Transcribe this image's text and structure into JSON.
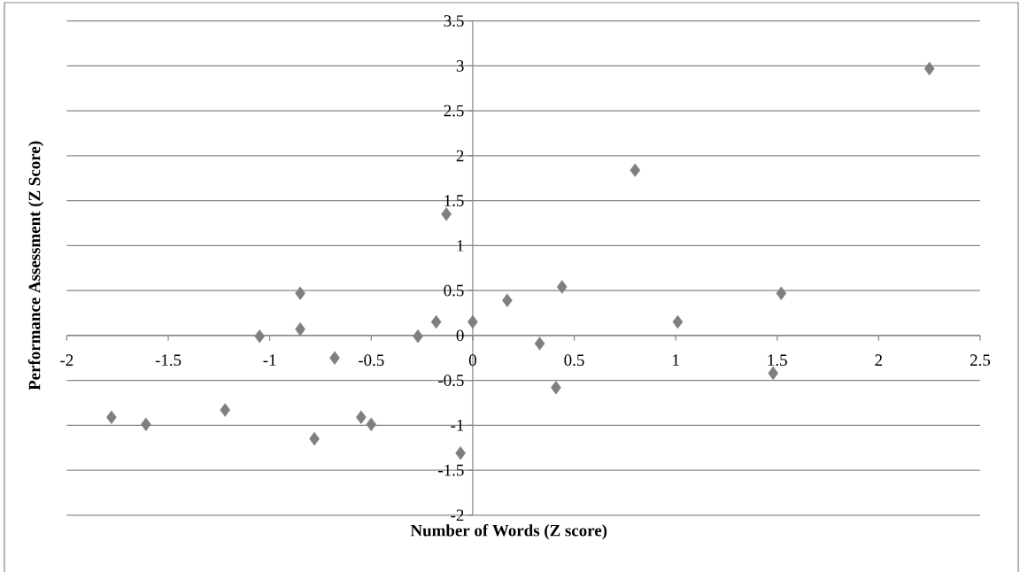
{
  "chart_data": {
    "type": "scatter",
    "xlabel": "Number of Words (Z score)",
    "ylabel": "Performance Assessment (Z Score)",
    "x": [
      -1.78,
      -1.61,
      -1.22,
      -1.05,
      -0.85,
      -0.85,
      -0.78,
      -0.68,
      -0.55,
      -0.5,
      -0.27,
      -0.18,
      -0.13,
      -0.06,
      0.0,
      0.17,
      0.33,
      0.41,
      0.44,
      0.8,
      1.01,
      1.48,
      1.52,
      2.25
    ],
    "values": [
      -0.91,
      -0.99,
      -0.83,
      -0.01,
      0.47,
      0.07,
      -1.15,
      -0.25,
      -0.91,
      -0.99,
      -0.01,
      0.15,
      1.35,
      -1.31,
      0.15,
      0.39,
      -0.09,
      -0.58,
      0.54,
      1.84,
      0.15,
      -0.42,
      0.47,
      2.97
    ],
    "color": "#7f7f7f",
    "marker": "diamond",
    "xlim": [
      -2,
      2.5
    ],
    "ylim": [
      -2,
      3.5
    ],
    "xticks": [
      -2,
      -1.5,
      -1,
      -0.5,
      0,
      0.5,
      1,
      1.5,
      2,
      2.5
    ],
    "yticks": [
      -2,
      -1.5,
      -1,
      -0.5,
      0,
      0.5,
      1,
      1.5,
      2,
      2.5,
      3,
      3.5
    ],
    "grid": "y"
  }
}
